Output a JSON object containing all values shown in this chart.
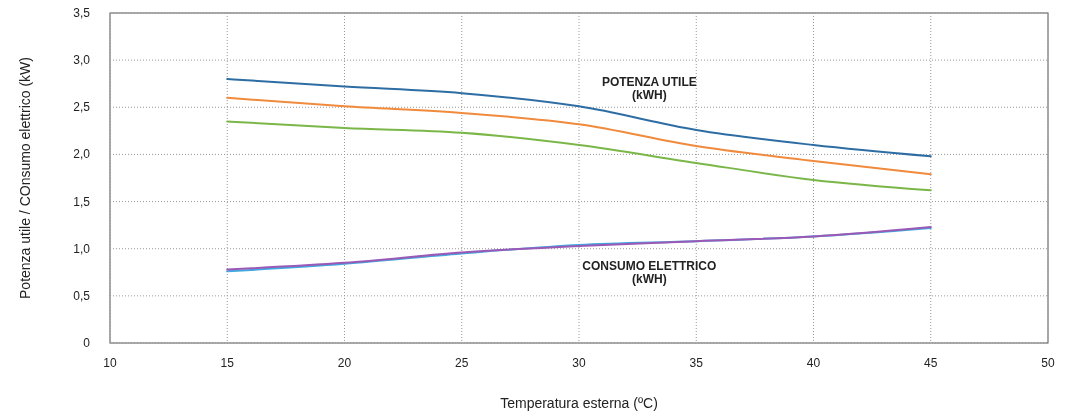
{
  "chart_data": {
    "type": "line",
    "xlabel": "Temperatura esterna (ºC)",
    "ylabel": "Potenza utile / COnsumo elettrico (kW)",
    "x": [
      15,
      20,
      25,
      30,
      35,
      40,
      45
    ],
    "series": [
      {
        "color": "#2e6da4",
        "values": [
          2.8,
          2.72,
          2.65,
          2.51,
          2.26,
          2.1,
          1.98
        ]
      },
      {
        "color": "#f08a3c",
        "values": [
          2.6,
          2.51,
          2.44,
          2.32,
          2.09,
          1.93,
          1.79
        ]
      },
      {
        "color": "#7ab648",
        "values": [
          2.35,
          2.28,
          2.23,
          2.1,
          1.91,
          1.73,
          1.62
        ]
      },
      {
        "color": "#3fa9e0",
        "values": [
          0.76,
          0.84,
          0.95,
          1.04,
          1.08,
          1.13,
          1.22
        ]
      },
      {
        "color": "#9b59b6",
        "values": [
          0.78,
          0.85,
          0.96,
          1.03,
          1.08,
          1.13,
          1.23
        ]
      }
    ],
    "xlim": [
      10,
      50
    ],
    "xticks": [
      10,
      15,
      20,
      25,
      30,
      35,
      40,
      45,
      50
    ],
    "ylim": [
      0,
      3.5
    ],
    "yticks": [
      0,
      {
        "value": 0.5,
        "label": "0,5"
      },
      {
        "value": 1,
        "label": "1,0"
      },
      {
        "value": 1.5,
        "label": "1,5"
      },
      {
        "value": 2,
        "label": "2,0"
      },
      {
        "value": 2.5,
        "label": "2,5"
      },
      {
        "value": 3,
        "label": "3,0"
      },
      {
        "value": 3.5,
        "label": "3,5"
      }
    ],
    "grid": true,
    "annotations": [
      "POTENZA UTILE\n(kWH)",
      "CONSUMO ELETTRICO\n(kWH)"
    ]
  }
}
